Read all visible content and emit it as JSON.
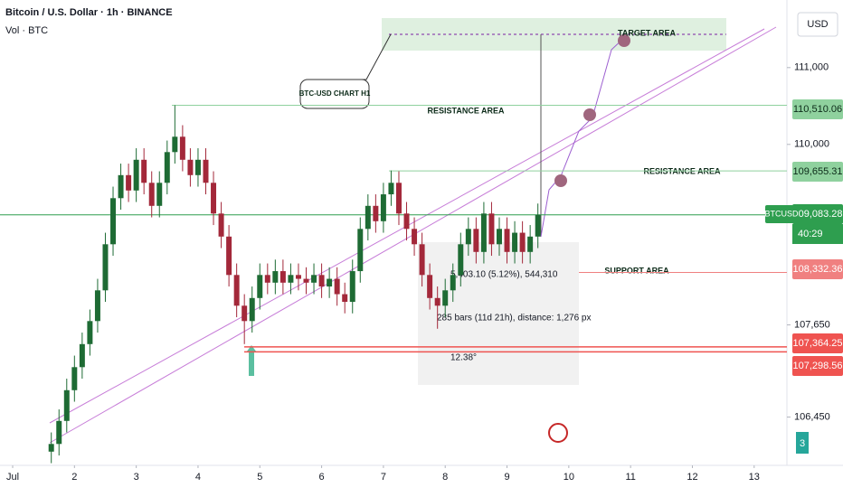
{
  "chart_data": {
    "type": "candlestick",
    "title": "Bitcoin / U.S. Dollar · 1h · BINANCE",
    "subtitle": "Vol · BTC",
    "currency": "USD",
    "up_color": "#1e6b34",
    "down_color": "#a3283a",
    "x": [
      1.625,
      1.75,
      1.875,
      2.0,
      2.125,
      2.25,
      2.375,
      2.5,
      2.625,
      2.75,
      2.875,
      3.0,
      3.125,
      3.25,
      3.375,
      3.5,
      3.625,
      3.75,
      3.875,
      4.0,
      4.125,
      4.25,
      4.375,
      4.5,
      4.625,
      4.75,
      4.875,
      5.0,
      5.125,
      5.25,
      5.375,
      5.5,
      5.625,
      5.75,
      5.875,
      6.0,
      6.125,
      6.25,
      6.375,
      6.5,
      6.625,
      6.75,
      6.875,
      7.0,
      7.125,
      7.25,
      7.375,
      7.5,
      7.625,
      7.75,
      7.875,
      8.0,
      8.125,
      8.25,
      8.375,
      8.5,
      8.625,
      8.75,
      8.875,
      9.0,
      9.125,
      9.25,
      9.375,
      9.5
    ],
    "open": [
      106000,
      106100,
      106400,
      106800,
      107100,
      107400,
      107700,
      108100,
      108700,
      109300,
      109600,
      109400,
      109800,
      109500,
      109200,
      109500,
      109900,
      110100,
      109800,
      109600,
      109800,
      109500,
      109100,
      108800,
      108300,
      107900,
      107700,
      108000,
      108300,
      108200,
      108350,
      108200,
      108300,
      108250,
      108200,
      108300,
      108150,
      108250,
      108050,
      107950,
      108350,
      108900,
      109200,
      109000,
      109350,
      109500,
      109100,
      108900,
      108700,
      108300,
      108000,
      107900,
      108100,
      108300,
      108700,
      108900,
      108600,
      109100,
      108700,
      108900,
      108600,
      108850,
      108600,
      108800
    ],
    "high": [
      106250,
      106550,
      106950,
      107250,
      107550,
      107850,
      108250,
      108850,
      109450,
      109750,
      109750,
      109950,
      109950,
      109650,
      109650,
      110050,
      110510,
      110250,
      109950,
      109950,
      109950,
      109650,
      109250,
      108950,
      108450,
      108050,
      108150,
      108450,
      108450,
      108500,
      108500,
      108450,
      108450,
      108400,
      108450,
      108450,
      108400,
      108400,
      108200,
      108500,
      109050,
      109350,
      109350,
      109500,
      109660,
      109650,
      109250,
      109050,
      108850,
      108450,
      108150,
      108250,
      108450,
      108850,
      109050,
      109050,
      109250,
      109250,
      109050,
      109050,
      109000,
      109000,
      108950,
      109230
    ],
    "low": [
      105850,
      105950,
      106250,
      106650,
      106950,
      107250,
      107550,
      107950,
      108550,
      109150,
      109250,
      109250,
      109350,
      109050,
      109050,
      109350,
      109750,
      109650,
      109450,
      109450,
      109350,
      108950,
      108650,
      108150,
      107750,
      107400,
      107550,
      107850,
      108050,
      108050,
      108050,
      108050,
      108100,
      108050,
      108050,
      108000,
      108000,
      107900,
      107800,
      107800,
      108200,
      108750,
      108850,
      108850,
      109200,
      108950,
      108750,
      108550,
      108150,
      107850,
      107600,
      107750,
      107950,
      108150,
      108550,
      108450,
      108450,
      108550,
      108550,
      108450,
      108450,
      108450,
      108450,
      108650
    ],
    "close": [
      106100,
      106400,
      106800,
      107100,
      107400,
      107700,
      108100,
      108700,
      109300,
      109600,
      109400,
      109800,
      109500,
      109200,
      109500,
      109900,
      110100,
      109800,
      109600,
      109800,
      109500,
      109100,
      108800,
      108300,
      107900,
      107700,
      108000,
      108300,
      108200,
      108350,
      108200,
      108300,
      108250,
      108200,
      108300,
      108150,
      108250,
      108050,
      107950,
      108350,
      108900,
      109200,
      109000,
      109350,
      109500,
      109100,
      108900,
      108700,
      108300,
      108000,
      107900,
      108100,
      108300,
      108700,
      108900,
      108600,
      109100,
      108700,
      108900,
      108600,
      108850,
      108600,
      108800,
      109083.28
    ],
    "xlim": [
      0.795,
      13.53
    ],
    "xticks": [
      {
        "value": 1,
        "label": "Jul"
      },
      2,
      3,
      4,
      5,
      6,
      7,
      8,
      9,
      10,
      11,
      12,
      13
    ],
    "ylim": [
      105880,
      111880
    ],
    "yticks": [
      {
        "value": 111000,
        "label": "111,000"
      },
      {
        "value": 110000,
        "label": "110,000"
      },
      {
        "value": 107650,
        "label": "107,650"
      },
      {
        "value": 106450,
        "label": "106,450"
      }
    ],
    "grid": false,
    "levels": [
      {
        "value": 110510.06,
        "label": "110,510.06",
        "color": "#8fd19e"
      },
      {
        "value": 109655.31,
        "label": "109,655.31",
        "color": "#8fd19e"
      },
      {
        "value": 109083.28,
        "label": "109,083.28",
        "color": "#2e9e4f"
      },
      {
        "value": 108332.36,
        "label": "108,332.36",
        "color": "#f08080"
      },
      {
        "value": 107364.25,
        "label": "107,364.25",
        "color": "#ef5350"
      },
      {
        "value": 107298.56,
        "label": "107,298.56",
        "color": "#ef5350"
      }
    ],
    "symbol_badge": "BTCUSD",
    "countdown": "40:29",
    "annotations": {
      "callout": "BTC-USD CHART H1",
      "resistance_1": "RESISTANCE AREA",
      "resistance_2": "RESISTANCE AREA",
      "support": "SUPPORT AREA",
      "target": "TARGET AREA"
    },
    "measure": {
      "price": "5,403.10 (5.12%), 544,310",
      "bars": "285 bars (11d 21h), distance: 1,276 px",
      "angle": "12.38°"
    },
    "corner_badge": "3"
  }
}
